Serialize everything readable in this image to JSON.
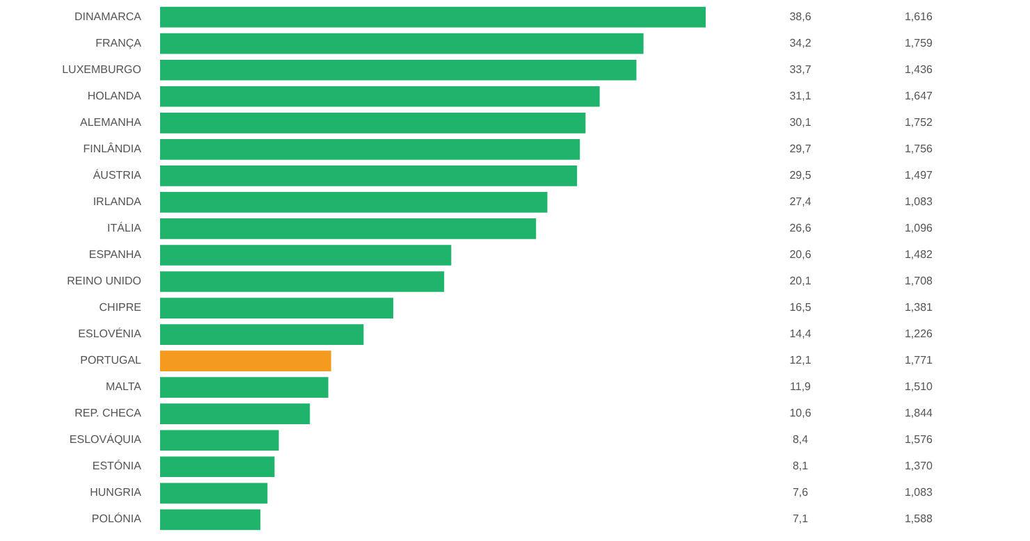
{
  "chart_data": {
    "type": "bar",
    "orientation": "horizontal",
    "categories": [
      "DINAMARCA",
      "FRANÇA",
      "LUXEMBURGO",
      "HOLANDA",
      "ALEMANHA",
      "FINLÂNDIA",
      "ÁUSTRIA",
      "IRLANDA",
      "ITÁLIA",
      "ESPANHA",
      "REINO UNIDO",
      "CHIPRE",
      "ESLOVÉNIA",
      "PORTUGAL",
      "MALTA",
      "REP. CHECA",
      "ESLOVÁQUIA",
      "ESTÓNIA",
      "HUNGRIA",
      "POLÓNIA"
    ],
    "values": [
      38.6,
      34.2,
      33.7,
      31.1,
      30.1,
      29.7,
      29.5,
      27.4,
      26.6,
      20.6,
      20.1,
      16.5,
      14.4,
      12.1,
      11.9,
      10.6,
      8.4,
      8.1,
      7.6,
      7.1
    ],
    "value_labels": [
      "38,6",
      "34,2",
      "33,7",
      "31,1",
      "30,1",
      "29,7",
      "29,5",
      "27,4",
      "26,6",
      "20,6",
      "20,1",
      "16,5",
      "14,4",
      "12,1",
      "11,9",
      "10,6",
      "8,4",
      "8,1",
      "7,6",
      "7,1"
    ],
    "colors": [
      "#1fb36b",
      "#1fb36b",
      "#1fb36b",
      "#1fb36b",
      "#1fb36b",
      "#1fb36b",
      "#1fb36b",
      "#1fb36b",
      "#1fb36b",
      "#1fb36b",
      "#1fb36b",
      "#1fb36b",
      "#1fb36b",
      "#f39a1f",
      "#1fb36b",
      "#1fb36b",
      "#1fb36b",
      "#1fb36b",
      "#1fb36b",
      "#1fb36b"
    ],
    "annotations": [
      "1,616",
      "1,759",
      "1,436",
      "1,647",
      "1,752",
      "1,756",
      "1,497",
      "1,083",
      "1,096",
      "1,482",
      "1,708",
      "1,381",
      "1,226",
      "1,771",
      "1,510",
      "1,844",
      "1,576",
      "1,370",
      "1,083",
      "1,588"
    ]
  }
}
